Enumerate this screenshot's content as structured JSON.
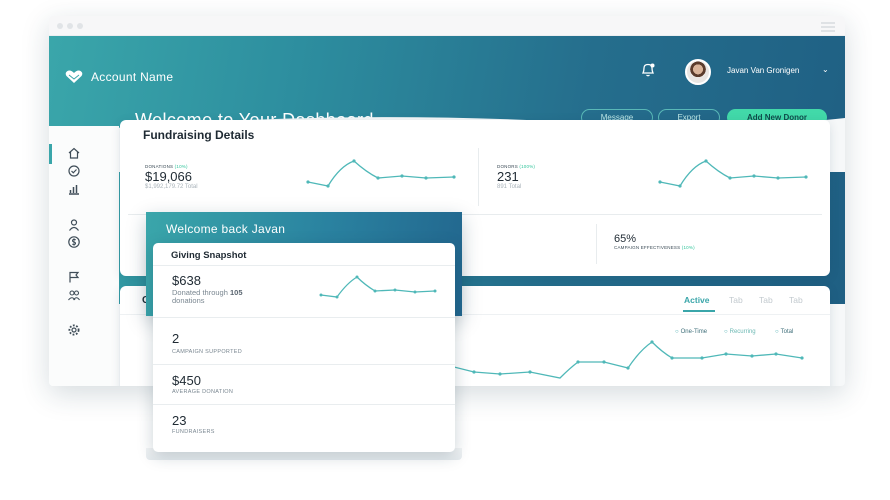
{
  "header": {
    "account_name": "Account Name",
    "user_name": "Javan Van Gronigen",
    "welcome": "Welcome  to Your Dashboard",
    "buttons": {
      "message": "Message",
      "export": "Export",
      "add_donor": "Add New Donor"
    },
    "colors": {
      "accent": "#3aa6aa",
      "accent_green": "#42d9a9",
      "header_dark": "#1f5f83"
    }
  },
  "sidebar": {
    "icons": [
      "home-icon",
      "check-circle-icon",
      "bar-chart-icon",
      "user-icon",
      "dollar-icon",
      "flag-icon",
      "users-icon",
      "gear-icon"
    ]
  },
  "fundraising": {
    "title": "Fundraising Details",
    "donations": {
      "label": "DONATIONS",
      "change": "(10%)",
      "value": "$19,066",
      "total": "$1,992,179.72 Total"
    },
    "donors": {
      "label": "DONORS",
      "change": "(100%)",
      "value": "231",
      "total": "891 Total"
    },
    "effectiveness": {
      "value": "65%",
      "label": "CAMPAIGN EFFECTIVENESS",
      "change": "(10%)"
    }
  },
  "lower_card": {
    "title_letter": "C",
    "tabs": [
      "Active",
      "Tab",
      "Tab",
      "Tab"
    ],
    "legend": [
      "One-Time",
      "Recurring",
      "Total"
    ]
  },
  "overlay": {
    "title": "Welcome back Javan",
    "snapshot_title": "Giving Snapshot",
    "stats": [
      {
        "value": "$638",
        "desc_pre": "Donated through",
        "desc_count": "105",
        "desc_post": "donations"
      },
      {
        "value": "2",
        "caption": "CAMPAIGN SUPPORTED"
      },
      {
        "value": "$450",
        "caption": "AVERAGE DONATION"
      },
      {
        "value": "23",
        "caption": "FUNDRAISERS"
      }
    ]
  }
}
